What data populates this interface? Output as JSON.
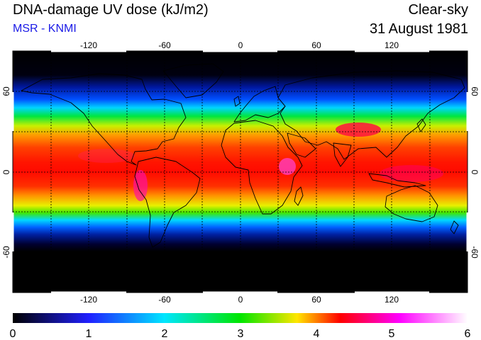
{
  "header": {
    "title": "DNA-damage UV dose (kJ/m2)",
    "subtitle": "MSR - KNMI",
    "condition": "Clear-sky",
    "date": "31 August 1981"
  },
  "map": {
    "projection": "equirectangular",
    "lon_range": [
      -180,
      180
    ],
    "lat_range": [
      -90,
      90
    ],
    "lon_ticks": [
      -120,
      -60,
      0,
      60,
      120
    ],
    "lat_ticks": [
      -60,
      0,
      60
    ],
    "lon_tick_labels": [
      "-120",
      "-60",
      "0",
      "60",
      "120"
    ],
    "lat_tick_labels": [
      "-60",
      "0",
      "60"
    ],
    "grid": "dashed, every 30 degrees",
    "polar_night_latitude": -66
  },
  "colorbar": {
    "min": 0,
    "max": 6,
    "tick_labels": [
      "0",
      "1",
      "2",
      "3",
      "4",
      "5",
      "6"
    ],
    "colors": [
      "#000000",
      "#2020ff",
      "#00e6ff",
      "#00e600",
      "#ffe600",
      "#ff0000",
      "#ff00ff",
      "#ffffff"
    ]
  }
}
